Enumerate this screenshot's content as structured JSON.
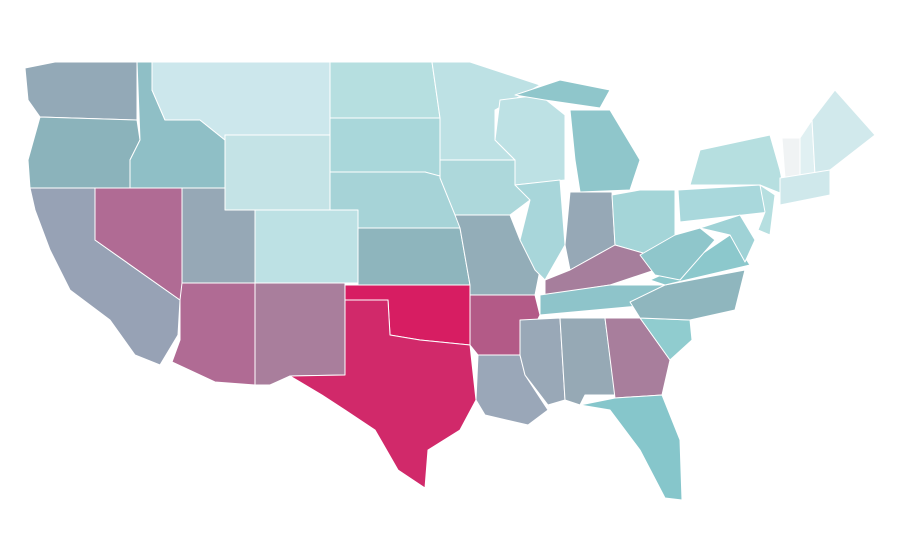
{
  "map": {
    "fills": [
      "#93a9b7",
      "#8bb3bb",
      "#97a2b5",
      "#b06b94",
      "#8fbfc6",
      "#cce7ec",
      "#c4e3e6",
      "#96a8b6",
      "#b06b94",
      "#bde1e4",
      "#a97e9c",
      "#b6dfe0",
      "#a9d7da",
      "#a6d3d7",
      "#8eb5bd",
      "#d71d62",
      "#d1296a",
      "#bde1e4",
      "#add8db",
      "#93adb8",
      "#b35a87",
      "#9aa7b8",
      "#bde1e4",
      "#a8d6da",
      "#8fc6cb",
      "#8fc6cb",
      "#96a8b6",
      "#a4d5d8",
      "#a67e9c",
      "#8ec4ca",
      "#99a8b7",
      "#96a9b5",
      "#a87e9c",
      "#86c6cb",
      "#90cccf",
      "#8fb6be",
      "#8cc8cc",
      "#8fc6cb",
      "#a9d8dc",
      "#b6dfe0",
      "#f0f3f4",
      "#e0f0f2",
      "#d1e9ec",
      "#cfe8eb",
      "#9fd2d6",
      "#b6dfe0"
    ]
  }
}
